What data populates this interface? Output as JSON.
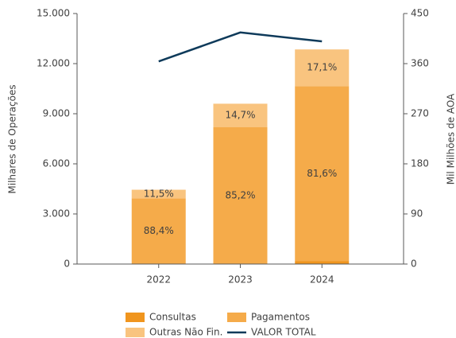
{
  "chart_data": {
    "type": "bar",
    "categories": [
      "2022",
      "2023",
      "2024"
    ],
    "series": [
      {
        "name": "Consultas",
        "color": "#f0951e",
        "values": [
          4,
          10,
          167
        ]
      },
      {
        "name": "Pagamentos",
        "color": "#f5ab4a",
        "values": [
          3934,
          8180,
          10486
        ],
        "shares": [
          88.4,
          85.2,
          81.6
        ],
        "share_labels": [
          "88,4%",
          "85,2%",
          "81,6%"
        ]
      },
      {
        "name": "Outras Não Fin.",
        "color": "#f9c47f",
        "values": [
          512,
          1410,
          2197
        ],
        "shares": [
          11.5,
          14.7,
          17.1
        ],
        "share_labels": [
          "11,5%",
          "14,7%",
          "17,1%"
        ]
      },
      {
        "name": "VALOR TOTAL",
        "color": "#0e3a5a",
        "type": "line",
        "axis": "y2",
        "values": [
          364,
          416,
          400
        ]
      }
    ],
    "ylabel": "Milhares de Operações",
    "y2label": "Mil Milhões de AOA",
    "ylim": [
      0,
      15000
    ],
    "yticks": [
      0,
      {
        "value": 3000,
        "label": "3.000"
      },
      {
        "value": 6000,
        "label": "6.000"
      },
      {
        "value": 9000,
        "label": "9.000"
      },
      {
        "value": 12000,
        "label": "12.000"
      },
      {
        "value": 15000,
        "label": "15.000"
      }
    ],
    "y2lim": [
      0,
      450
    ],
    "y2ticks": [
      0,
      90,
      180,
      270,
      360,
      450
    ]
  }
}
